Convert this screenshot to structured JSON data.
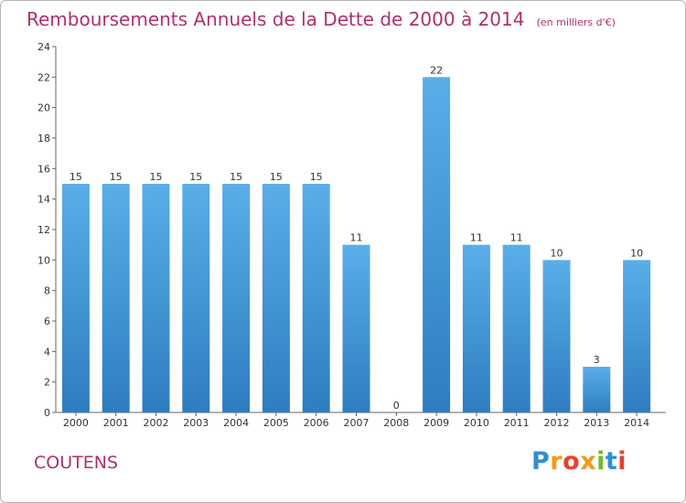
{
  "title": "Remboursements Annuels de la Dette de 2000 à 2014",
  "unit_note": "(en milliers d'€)",
  "commune": "COUTENS",
  "logo_text": "Proxiti",
  "colors": {
    "title": "#b0306a",
    "bar_top": "#5aaee8",
    "bar_bottom": "#2e7dc0"
  },
  "chart_data": {
    "type": "bar",
    "title": "Remboursements Annuels de la Dette de 2000 à 2014",
    "xlabel": "",
    "ylabel": "",
    "ylim": [
      0,
      24
    ],
    "yticks": [
      0,
      2,
      4,
      6,
      8,
      10,
      12,
      14,
      16,
      18,
      20,
      22,
      24
    ],
    "grid": false,
    "categories": [
      "2000",
      "2001",
      "2002",
      "2003",
      "2004",
      "2005",
      "2006",
      "2007",
      "2008",
      "2009",
      "2010",
      "2011",
      "2012",
      "2013",
      "2014"
    ],
    "values": [
      15,
      15,
      15,
      15,
      15,
      15,
      15,
      11,
      0,
      22,
      11,
      11,
      10,
      3,
      10
    ]
  }
}
